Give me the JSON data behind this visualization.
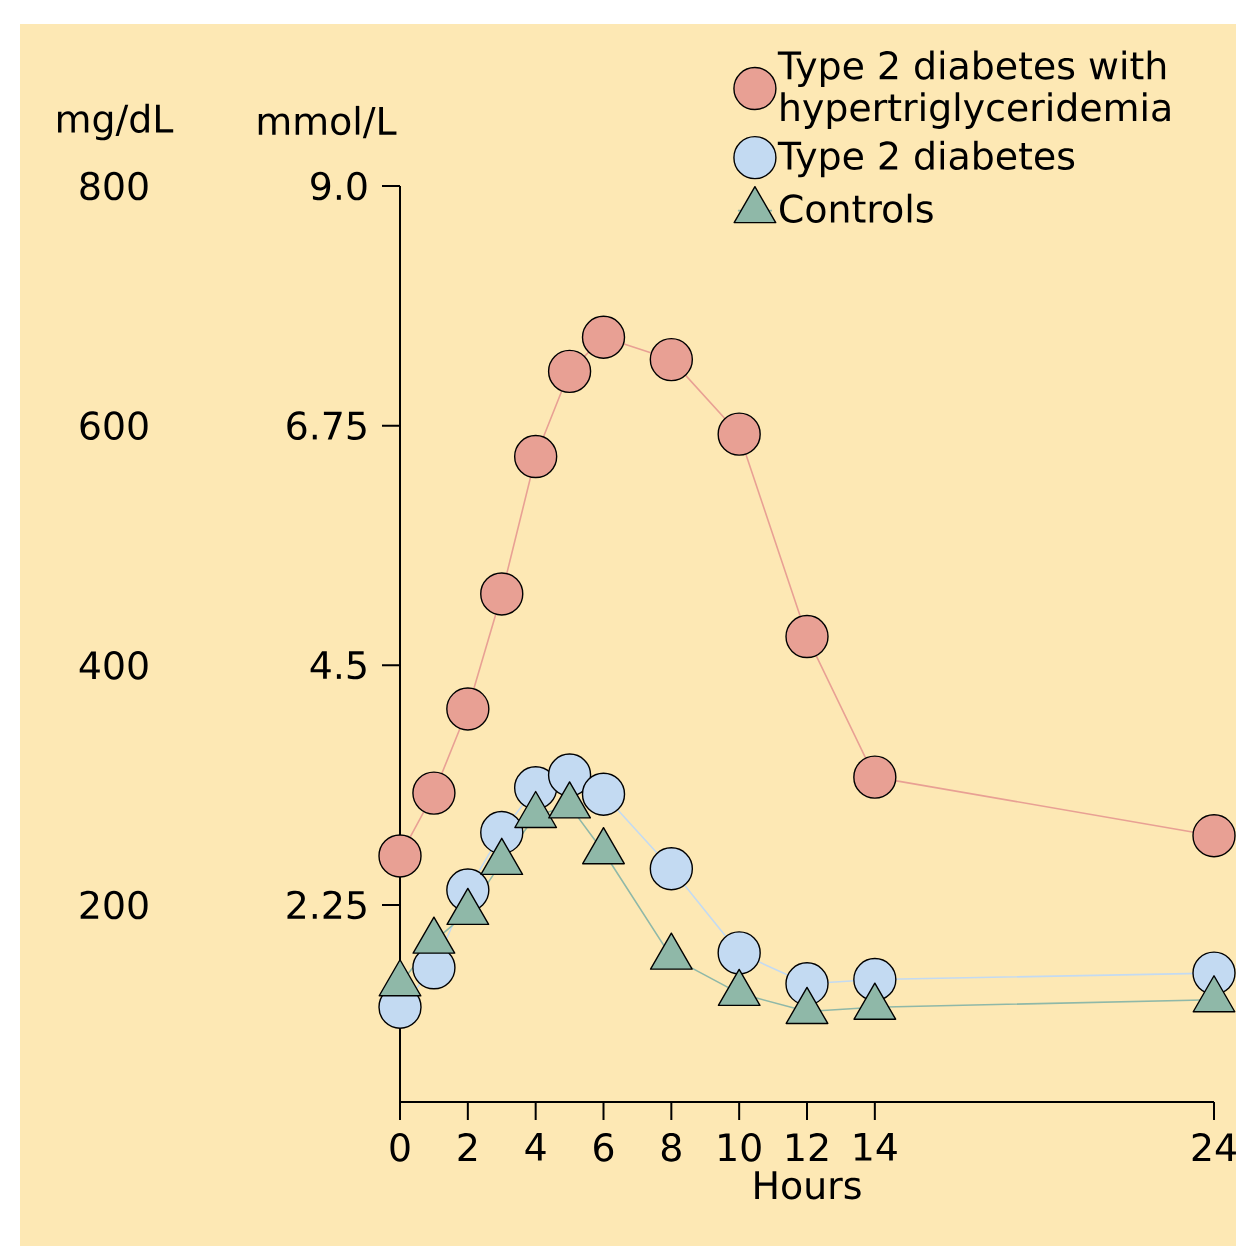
{
  "chart_data": {
    "type": "line",
    "xlabel": "Hours",
    "ylabel": "mmol/L",
    "y2label": "mg/dL",
    "xlim": [
      0,
      24
    ],
    "xticks": [
      0,
      2,
      4,
      6,
      8,
      10,
      12,
      14,
      24
    ],
    "ylim": [
      0.4,
      9.0
    ],
    "yticks": [
      2.25,
      4.5,
      6.75,
      {
        "value": 9.0,
        "label": "9.0"
      }
    ],
    "y2lim": [
      35.6,
      800
    ],
    "y2ticks": [
      200,
      400,
      600,
      800
    ],
    "x": [
      0,
      1,
      2,
      3,
      4,
      5,
      6,
      8,
      10,
      12,
      14,
      24
    ],
    "series": [
      {
        "name": "Type 2 diabetes with hypertriglyceridemia",
        "color": "#e8a094",
        "marker": "circle",
        "values": [
          2.71,
          3.3,
          4.09,
          5.17,
          6.46,
          7.26,
          7.58,
          7.37,
          6.67,
          4.77,
          3.45,
          2.9
        ]
      },
      {
        "name": "Type 2 diabetes",
        "color": "#c3daf2",
        "marker": "circle",
        "values": [
          1.29,
          1.66,
          2.39,
          2.93,
          3.35,
          3.47,
          3.29,
          2.59,
          1.8,
          1.51,
          1.55,
          1.61
        ]
      },
      {
        "name": "Controls",
        "color": "#8fb8a8",
        "marker": "triangle",
        "values": [
          1.51,
          1.91,
          2.18,
          2.65,
          3.09,
          3.18,
          2.75,
          1.76,
          1.42,
          1.25,
          1.29,
          1.36
        ]
      }
    ],
    "legend": "top right",
    "grid": false,
    "line_style": "solid"
  }
}
